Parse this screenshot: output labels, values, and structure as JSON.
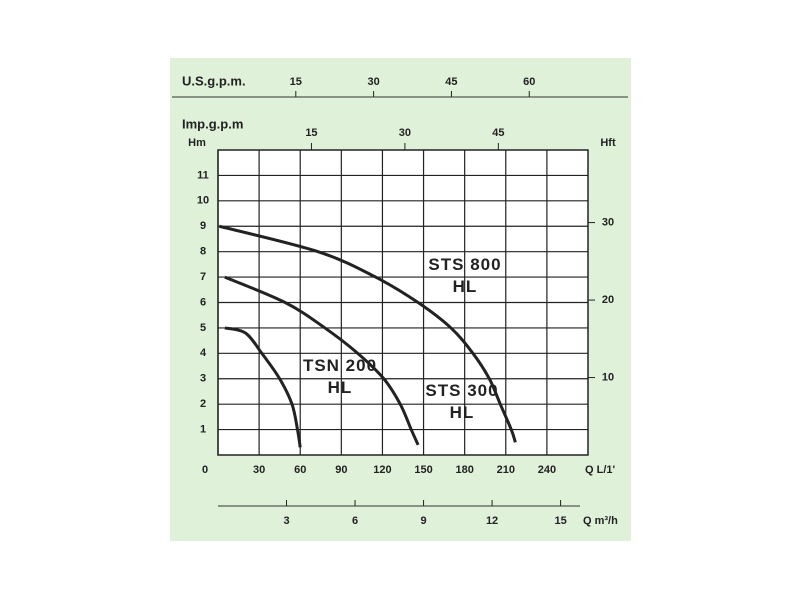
{
  "chart_data": {
    "type": "line",
    "xlabel": "Q L/1'",
    "ylabel": "Hm",
    "y2label": "Hft",
    "xlim": [
      0,
      270
    ],
    "xticks": [
      0,
      30,
      60,
      90,
      120,
      150,
      180,
      210,
      240
    ],
    "ylim": [
      0,
      12
    ],
    "yticks": [
      1,
      2,
      3,
      4,
      5,
      6,
      7,
      8,
      9,
      10,
      11
    ],
    "y2lim": [
      0,
      39.37
    ],
    "y2ticks": [
      10,
      20,
      30
    ],
    "grid": true,
    "top_axes": [
      {
        "label": "U.S.g.p.m.",
        "lim": [
          0,
          71.33
        ],
        "ticks": [
          15,
          30,
          45,
          60
        ]
      },
      {
        "label": "Imp.g.p.m",
        "lim": [
          0,
          59.39
        ],
        "ticks": [
          15,
          30,
          45
        ]
      }
    ],
    "bottom_axis": {
      "label": "Q m³/h",
      "lim": [
        0,
        16.2
      ],
      "ticks": [
        3,
        6,
        9,
        12,
        15
      ]
    },
    "series": [
      {
        "name": "TSN 200 HL",
        "color": "#222222",
        "x": [
          5,
          20,
          32,
          45,
          54,
          58,
          60
        ],
        "values": [
          5,
          4.8,
          4,
          3,
          2,
          1,
          0.3
        ]
      },
      {
        "name": "STS 300 HL",
        "color": "#222222",
        "x": [
          5,
          49,
          78,
          102,
          121,
          133,
          141,
          146
        ],
        "values": [
          7,
          6,
          5,
          4,
          3,
          2,
          1,
          0.4
        ]
      },
      {
        "name": "STS 800 HL",
        "color": "#222222",
        "x": [
          1,
          73,
          115,
          146,
          170,
          186,
          198,
          206,
          214,
          217
        ],
        "values": [
          9,
          8,
          7,
          6,
          5,
          4,
          3,
          2,
          1,
          0.5
        ]
      }
    ]
  }
}
